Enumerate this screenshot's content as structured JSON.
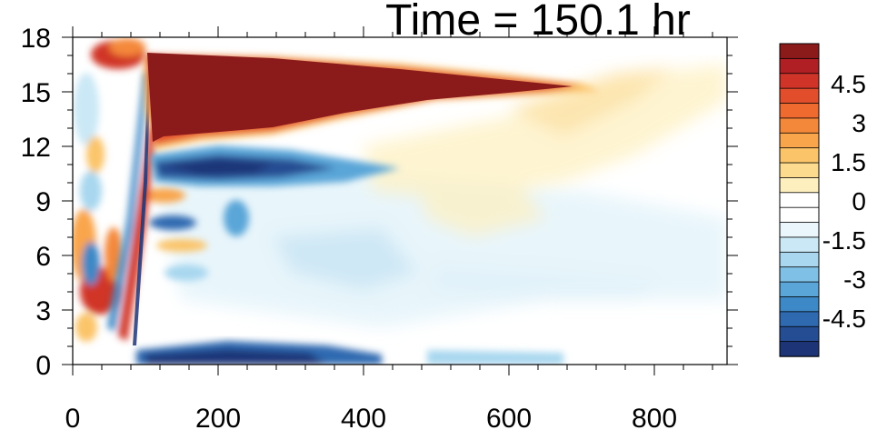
{
  "chart_data": {
    "type": "heatmap",
    "title": "Time = 150.1 hr",
    "xlabel": "",
    "ylabel": "",
    "xlim": [
      0,
      900
    ],
    "ylim": [
      0,
      18
    ],
    "x_ticks": [
      "0",
      "200",
      "400",
      "600",
      "800"
    ],
    "y_ticks": [
      "0",
      "3",
      "6",
      "9",
      "12",
      "15",
      "18"
    ],
    "colorbar": {
      "vmin": -6,
      "vmax": 6,
      "tick_labels": [
        "4.5",
        "3",
        "1.5",
        "0",
        "-1.5",
        "-3",
        "-4.5"
      ],
      "colors": [
        "#8B1A1A",
        "#B01F24",
        "#D03428",
        "#E24E2C",
        "#EE6A2F",
        "#F4883A",
        "#F9A54C",
        "#FBC469",
        "#FCDB8F",
        "#FEF0BE",
        "#FFFFFF",
        "#FFFFFF",
        "#EAF6FB",
        "#CBE8F6",
        "#A8D7EF",
        "#7FC1E6",
        "#5AA6D8",
        "#3D88C6",
        "#2F69B0",
        "#254D93",
        "#1D3577"
      ]
    },
    "features": [
      {
        "name": "upper-positive-plume",
        "value": 6
      },
      {
        "name": "negative-band-below-plume",
        "value": -5
      },
      {
        "name": "near-surface-negative-band",
        "value": -5
      }
    ]
  }
}
